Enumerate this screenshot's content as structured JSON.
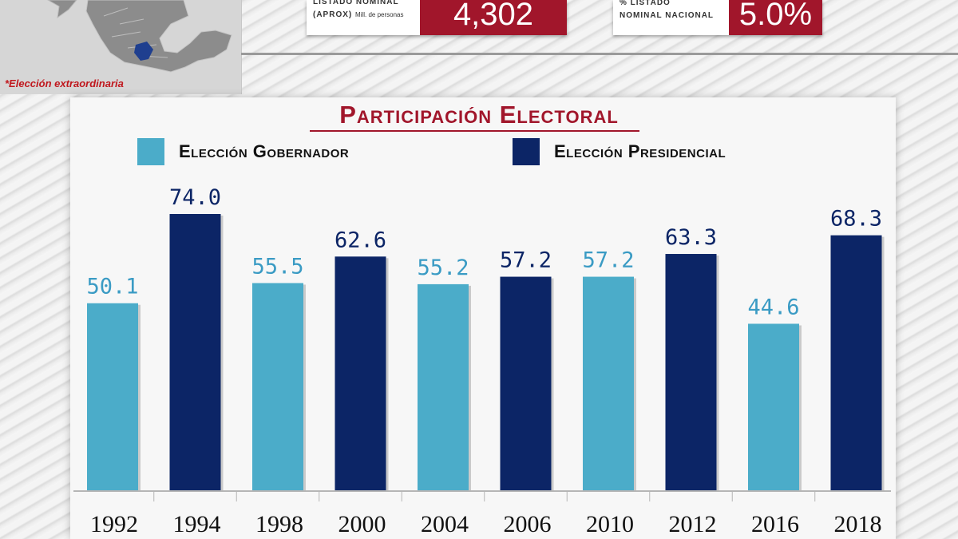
{
  "header": {
    "footnote": "*Elección extraordinaria",
    "listado": {
      "label_line1": "LISTADO NOMINAL",
      "label_line2": "(APROX)",
      "label_sub": "Mill. de personas",
      "value": "4,302"
    },
    "porcentaje": {
      "label_line1": "% LISTADO",
      "label_line2": "NOMINAL NACIONAL",
      "value": "5.0%"
    }
  },
  "colors": {
    "gobernador": "#4bacc9",
    "presidencial": "#0c2566",
    "title": "#a1162b",
    "gob_label": "#3a9bc4",
    "pres_label": "#0c2566"
  },
  "chart_data": {
    "type": "bar",
    "title": "Participación Electoral",
    "legend": [
      {
        "name": "Elección Gobernador",
        "key": "gobernador"
      },
      {
        "name": "Elección Presidencial",
        "key": "presidencial"
      }
    ],
    "categories": [
      "1992",
      "1994",
      "1998",
      "2000",
      "2004",
      "2006",
      "2010",
      "2012",
      "2016",
      "2018"
    ],
    "values": [
      50.1,
      74.0,
      55.5,
      62.6,
      55.2,
      57.2,
      57.2,
      63.3,
      44.6,
      68.3
    ],
    "labels": [
      "50.1",
      "74.0",
      "55.5",
      "62.6",
      "55.2",
      "57.2",
      "57.2",
      "63.3",
      "44.6",
      "68.3"
    ],
    "series_of": [
      "gobernador",
      "presidencial",
      "gobernador",
      "presidencial",
      "gobernador",
      "presidencial",
      "gobernador",
      "presidencial",
      "gobernador",
      "presidencial"
    ],
    "ylim": [
      0,
      74
    ],
    "xlabel": "",
    "ylabel": ""
  }
}
